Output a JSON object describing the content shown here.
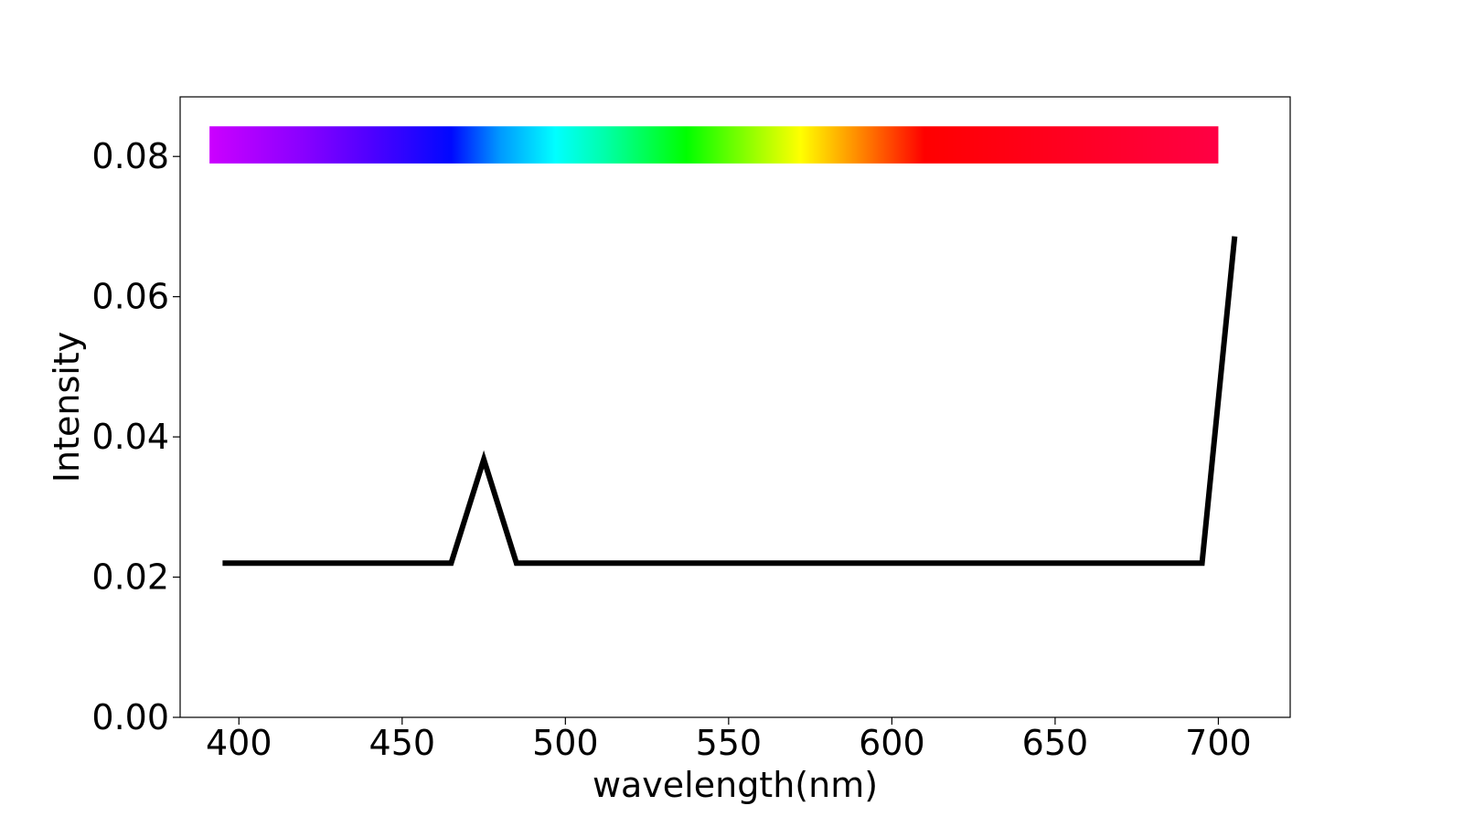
{
  "chart_data": {
    "type": "line",
    "title": "",
    "xlabel": "wavelength(nm)",
    "ylabel": "Intensity",
    "xlim": [
      382,
      722
    ],
    "ylim": [
      0,
      0.0885
    ],
    "xticks": [
      400,
      450,
      500,
      550,
      600,
      650,
      700
    ],
    "xtick_labels": [
      "400",
      "450",
      "500",
      "550",
      "600",
      "650",
      "700"
    ],
    "yticks": [
      0,
      0.02,
      0.04,
      0.06,
      0.08
    ],
    "ytick_labels": [
      "0.00",
      "0.02",
      "0.04",
      "0.06",
      "0.08"
    ],
    "grid": false,
    "series": [
      {
        "color": "#000000",
        "x": [
          395,
          465,
          475,
          485,
          695,
          705
        ],
        "y": [
          0.022,
          0.022,
          0.0368,
          0.022,
          0.022,
          0.0686
        ]
      }
    ],
    "spectrum_bar": {
      "x_range": [
        391,
        700
      ],
      "y_range": [
        0.079,
        0.0843
      ],
      "stops": [
        {
          "wavelength": 391,
          "color": "#cc00ff"
        },
        {
          "wavelength": 420,
          "color": "#8800ff"
        },
        {
          "wavelength": 440,
          "color": "#5000ff"
        },
        {
          "wavelength": 465,
          "color": "#0008ff"
        },
        {
          "wavelength": 480,
          "color": "#0099ff"
        },
        {
          "wavelength": 497,
          "color": "#00ffff"
        },
        {
          "wavelength": 512,
          "color": "#00ffaa"
        },
        {
          "wavelength": 537,
          "color": "#00ff00"
        },
        {
          "wavelength": 560,
          "color": "#aaff00"
        },
        {
          "wavelength": 572,
          "color": "#ffff00"
        },
        {
          "wavelength": 590,
          "color": "#ff8800"
        },
        {
          "wavelength": 610,
          "color": "#ff0000"
        },
        {
          "wavelength": 700,
          "color": "#ff0044"
        }
      ]
    }
  }
}
